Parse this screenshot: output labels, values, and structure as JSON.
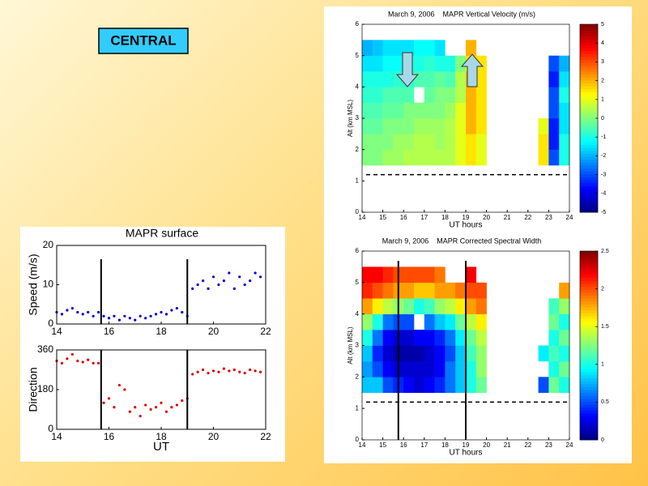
{
  "label": "CENTRAL",
  "chart_data": [
    {
      "type": "scatter",
      "title": "MAPR surface",
      "ylabel": "Speed (m/s)",
      "color": "#0000cc",
      "x": [
        14.0,
        14.2,
        14.4,
        14.6,
        14.8,
        15.0,
        15.2,
        15.4,
        15.6,
        15.8,
        16.0,
        16.2,
        16.4,
        16.6,
        16.8,
        17.0,
        17.2,
        17.4,
        17.6,
        17.8,
        18.0,
        18.2,
        18.4,
        18.6,
        18.8,
        19.0,
        19.2,
        19.4,
        19.6,
        19.8,
        20.0,
        20.2,
        20.4,
        20.6,
        20.8,
        21.0,
        21.2,
        21.4,
        21.6,
        21.8
      ],
      "values": [
        3,
        2.5,
        3.5,
        4,
        3,
        2.5,
        3,
        2,
        3,
        2,
        1.5,
        2,
        1,
        2,
        1.5,
        1,
        2,
        1.5,
        2,
        2.5,
        3,
        2.5,
        3.5,
        4,
        3,
        2,
        9,
        10,
        11,
        9,
        12,
        10,
        11,
        13,
        9,
        12,
        10,
        11,
        13,
        12
      ],
      "xlim": [
        14,
        22
      ],
      "xticks": [
        14,
        16,
        18,
        20,
        22
      ],
      "ylim": [
        0,
        20
      ],
      "yticks": [
        0,
        10,
        20
      ],
      "vlines": [
        15.7,
        19.0
      ]
    },
    {
      "type": "scatter",
      "ylabel": "Direction",
      "xlabel": "UT",
      "color": "#dd0000",
      "x": [
        14.0,
        14.2,
        14.4,
        14.6,
        14.8,
        15.0,
        15.2,
        15.4,
        15.6,
        15.8,
        16.0,
        16.2,
        16.4,
        16.6,
        16.8,
        17.0,
        17.2,
        17.4,
        17.6,
        17.8,
        18.0,
        18.2,
        18.4,
        18.6,
        18.8,
        19.0,
        19.2,
        19.4,
        19.6,
        19.8,
        20.0,
        20.2,
        20.4,
        20.6,
        20.8,
        21.0,
        21.2,
        21.4,
        21.6,
        21.8
      ],
      "values": [
        310,
        300,
        320,
        340,
        310,
        305,
        315,
        300,
        300,
        120,
        140,
        100,
        200,
        180,
        80,
        100,
        60,
        110,
        90,
        100,
        120,
        80,
        100,
        110,
        130,
        140,
        250,
        260,
        270,
        255,
        265,
        260,
        275,
        265,
        270,
        260,
        255,
        270,
        265,
        260
      ],
      "xlim": [
        14,
        22
      ],
      "xticks": [
        14,
        16,
        18,
        20,
        22
      ],
      "ylim": [
        0,
        360
      ],
      "yticks": [
        0,
        180,
        360
      ],
      "vlines": [
        15.7,
        19.0
      ]
    },
    {
      "type": "heatmap",
      "title": "March 9, 2006    MAPR Vertical Velocity (m/s)",
      "ylabel": "Alt (km MSL)",
      "xlabel": "UT hours",
      "colormap": "jet",
      "x": [
        14,
        14.5,
        15,
        15.5,
        16,
        16.5,
        17,
        17.5,
        18,
        18.5,
        19,
        19.5,
        22.5,
        23,
        23.5
      ],
      "y": [
        1.5,
        2,
        2.5,
        3,
        3.5,
        4,
        4.5,
        5
      ],
      "z": [
        [
          0,
          0,
          0.3,
          0.3,
          0.5,
          0.5,
          0.5,
          0.5,
          0.5,
          1,
          1.5,
          1,
          1.5,
          -3,
          -1
        ],
        [
          0,
          0,
          0,
          0.3,
          0.3,
          0.5,
          0.5,
          0.3,
          0.5,
          1,
          1.5,
          1,
          1.5,
          -3.5,
          -1
        ],
        [
          -0.3,
          -0.3,
          0,
          0,
          0,
          0.3,
          0.3,
          0.3,
          0.5,
          1,
          2,
          1.5,
          1,
          -3.5,
          -1.5
        ],
        [
          -0.5,
          -0.5,
          -0.3,
          -0.3,
          0,
          0,
          0,
          0,
          0.3,
          1,
          2,
          1.5,
          null,
          -3,
          -1.5
        ],
        [
          -0.8,
          -0.8,
          -0.5,
          -0.5,
          -0.5,
          null,
          -0.3,
          0,
          0,
          0.5,
          2,
          1.5,
          null,
          -3,
          -1
        ],
        [
          -1,
          -1,
          -1,
          -0.8,
          -0.8,
          -0.5,
          -0.5,
          -0.3,
          -0.5,
          0.5,
          2,
          1.5,
          null,
          -3.5,
          -1.5
        ],
        [
          -1.5,
          -1.5,
          -1.2,
          -1.2,
          -1,
          -1,
          -0.8,
          -1,
          -1,
          0,
          1.5,
          1.5,
          null,
          -3,
          -2
        ],
        [
          -2,
          -1.8,
          -1.5,
          -1.5,
          -1.5,
          -1.2,
          -1.2,
          -1.5,
          null,
          null,
          2,
          null,
          null,
          null,
          null
        ]
      ],
      "xlim": [
        14,
        24
      ],
      "xticks": [
        14,
        15,
        16,
        17,
        18,
        19,
        20,
        21,
        22,
        23,
        24
      ],
      "ylim": [
        0,
        6
      ],
      "yticks": [
        0,
        1,
        2,
        3,
        4,
        5,
        6
      ],
      "zlim": [
        -5,
        5
      ],
      "zticks": [
        -5,
        -4,
        -3,
        -2,
        -1,
        0,
        1,
        2,
        3,
        4,
        5
      ],
      "hline": 1.2
    },
    {
      "type": "heatmap",
      "title": "March 9, 2006    MAPR Corrected Spectral Width",
      "ylabel": "Alt (km MSL)",
      "xlabel": "UT hours",
      "colormap": "jet",
      "x": [
        14,
        14.5,
        15,
        15.5,
        16,
        16.5,
        17,
        17.5,
        18,
        18.5,
        19,
        19.5,
        22.5,
        23,
        23.5
      ],
      "y": [
        1.5,
        2,
        2.5,
        3,
        3.5,
        4,
        4.5,
        5
      ],
      "z": [
        [
          0.8,
          0.8,
          0.5,
          0.4,
          0.3,
          0.2,
          0.3,
          0.4,
          0.6,
          0.8,
          1,
          1.2,
          0.5,
          1.2,
          1
        ],
        [
          0.7,
          0.5,
          0.3,
          0.2,
          0.2,
          0.2,
          0.2,
          0.3,
          0.6,
          0.8,
          1,
          1.3,
          null,
          1,
          1.2
        ],
        [
          0.8,
          0.4,
          0.2,
          0.1,
          0.1,
          0.1,
          0.2,
          0.3,
          0.5,
          0.8,
          1.1,
          1.3,
          0.9,
          1.1,
          1
        ],
        [
          1,
          0.6,
          0.3,
          0.2,
          0.2,
          0.3,
          0.3,
          0.4,
          0.6,
          0.9,
          1.2,
          1.4,
          null,
          1,
          1.2
        ],
        [
          1.3,
          1,
          0.6,
          0.5,
          0.5,
          null,
          0.6,
          0.8,
          0.9,
          1.2,
          1.4,
          1.6,
          null,
          1.2,
          1
        ],
        [
          1.8,
          1.6,
          1.4,
          1.3,
          1.2,
          1,
          1.1,
          1.3,
          1.4,
          1.6,
          1.8,
          1.9,
          null,
          1.1,
          1.3
        ],
        [
          2.1,
          2,
          1.9,
          1.8,
          1.8,
          1.7,
          1.7,
          1.8,
          1.8,
          1.9,
          2,
          2,
          null,
          null,
          1.8
        ],
        [
          2.2,
          2.2,
          2.1,
          2,
          2,
          2,
          2,
          1.9,
          null,
          null,
          2.2,
          null,
          null,
          null,
          null
        ]
      ],
      "xlim": [
        14,
        24
      ],
      "xticks": [
        14,
        15,
        16,
        17,
        18,
        19,
        20,
        21,
        22,
        23,
        24
      ],
      "ylim": [
        0,
        6
      ],
      "yticks": [
        0,
        1,
        2,
        3,
        4,
        5,
        6
      ],
      "zlim": [
        0,
        2.5
      ],
      "zticks": [
        0,
        0.5,
        1,
        1.5,
        2,
        2.5
      ],
      "hline": 1.2,
      "vlines": [
        15.75,
        19.0
      ]
    }
  ]
}
